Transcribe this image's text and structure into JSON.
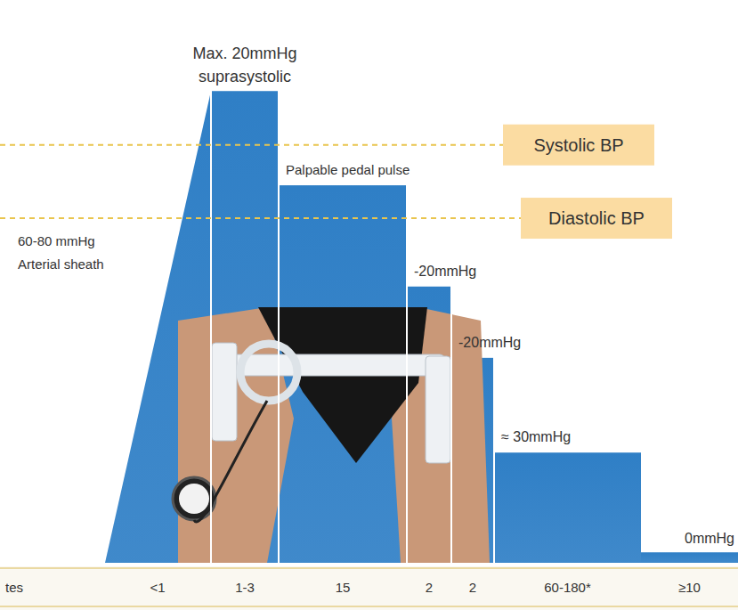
{
  "chart_data": {
    "type": "step",
    "categories": [
      "<1",
      "1-3",
      "15",
      "2",
      "2",
      "60-180*",
      "≥10"
    ],
    "x_label": "tes",
    "values": [
      94.6,
      94.6,
      75.7,
      55.4,
      41.1,
      22.1,
      2.1
    ],
    "annotations": [
      [
        "60-80 mmHg",
        "Arterial sheath"
      ],
      [
        "Max. 20mmHg",
        "suprasystolic"
      ],
      [
        "Palpable pedal pulse"
      ],
      [
        "-20mmHg"
      ],
      [
        "-20mmHg"
      ],
      [
        "≈ 30mmHg"
      ],
      [
        "0mmHg"
      ]
    ],
    "reference_lines": [
      {
        "label": "Systolic BP",
        "value": 83.8
      },
      {
        "label": "Diastolic BP",
        "value": 69.1
      }
    ],
    "color": "#2f7fc6",
    "ylim": [
      0,
      100
    ],
    "tick_labels": "x"
  }
}
